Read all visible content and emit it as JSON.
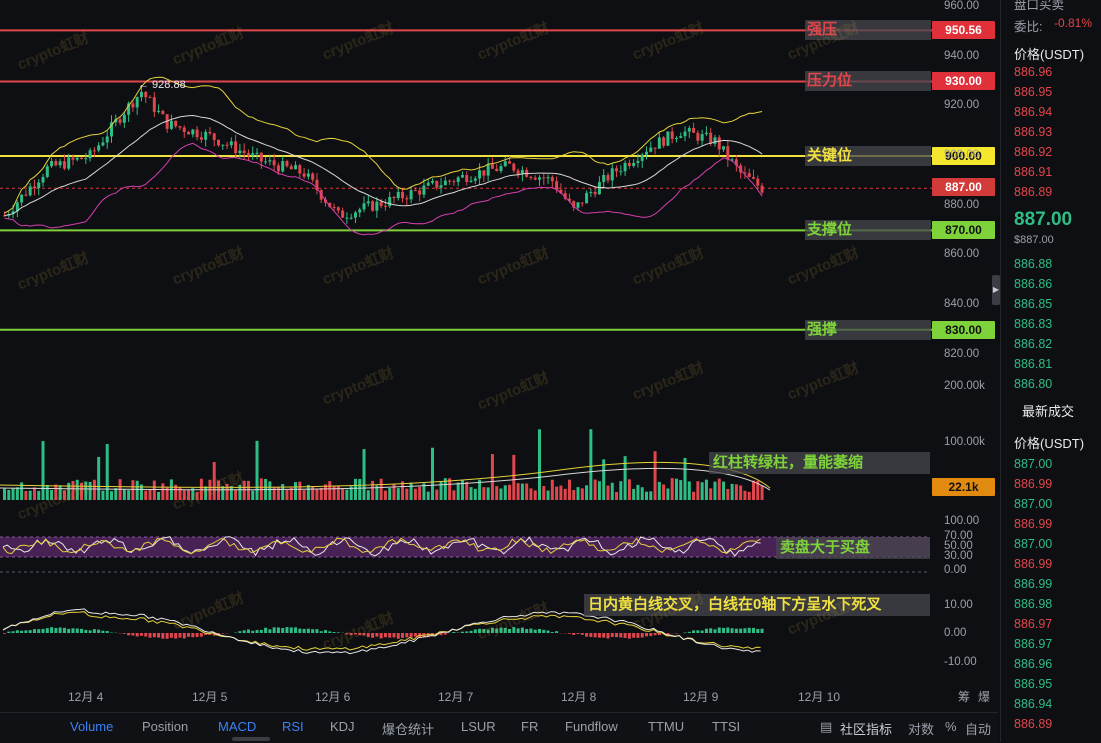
{
  "levels": [
    {
      "price": 950.56,
      "label": "强压",
      "tag": "950.56",
      "line_color": "#e0464c",
      "tag_bg": "#e0303a",
      "tag_color": "#ffffff",
      "label_color": "#e0464c"
    },
    {
      "price": 930.0,
      "label": "压力位",
      "tag": "930.00",
      "line_color": "#e0464c",
      "tag_bg": "#e0303a",
      "tag_color": "#ffffff",
      "label_color": "#e0464c"
    },
    {
      "price": 900.0,
      "label": "关键位",
      "tag": "900.00",
      "line_color": "#f0e040",
      "tag_bg": "#f5e62e",
      "tag_color": "#111111",
      "label_color": "#f0e040"
    },
    {
      "price": 870.0,
      "label": "支撑位",
      "tag": "870.00",
      "line_color": "#7ed23a",
      "tag_bg": "#7ed23a",
      "tag_color": "#111111",
      "label_color": "#7ed23a"
    },
    {
      "price": 830.0,
      "label": "强撑",
      "tag": "830.00",
      "line_color": "#7ed23a",
      "tag_bg": "#7ed23a",
      "tag_color": "#111111",
      "label_color": "#7ed23a"
    }
  ],
  "current_price": {
    "price": 887.0,
    "tag": "887.00",
    "tag_bg": "#d33a3a"
  },
  "high_marker": "928.88",
  "price_axis": [
    "960.00",
    "940.00",
    "920.00",
    "900.00",
    "880.00",
    "860.00",
    "840.00",
    "820.00"
  ],
  "volume_axis": [
    "200.00k",
    "100.00k"
  ],
  "volume_tag": "22.1k",
  "rsi_axis": [
    "100.00",
    "70.00",
    "50.00",
    "30.00",
    "0.00"
  ],
  "macd_axis": [
    "10.00",
    "0.00",
    "-10.00"
  ],
  "annotations": {
    "volume": "红柱转绿柱，量能萎缩",
    "rsi": "卖盘大于买盘",
    "macd": "日内黄白线交叉，白线在0轴下方呈水下死叉"
  },
  "dates": [
    "12月 4",
    "12月 5",
    "12月 6",
    "12月 7",
    "12月 8",
    "12月 9",
    "12月 10"
  ],
  "corner_labels": [
    "筹",
    "爆"
  ],
  "watermark": "crypto虹财",
  "bottom_tabs": [
    {
      "label": "Volume",
      "active": true
    },
    {
      "label": "Position",
      "active": false
    },
    {
      "label": "MACD",
      "active": true
    },
    {
      "label": "RSI",
      "active": true
    },
    {
      "label": "KDJ",
      "active": false
    },
    {
      "label": "爆仓统计",
      "active": false
    },
    {
      "label": "LSUR",
      "active": false
    },
    {
      "label": "FR",
      "active": false
    },
    {
      "label": "Fundflow",
      "active": false
    },
    {
      "label": "TTMU",
      "active": false
    },
    {
      "label": "TTSI",
      "active": false
    }
  ],
  "bottom_right": {
    "community": "社区指标",
    "log": "对数",
    "percent": "%",
    "auto": "自动"
  },
  "order_book": {
    "top_title": "盘口买卖",
    "ratio_label": "委比:",
    "ratio_value": "-0.81%",
    "price_header": "价格(USDT)",
    "asks": [
      "886.96",
      "886.95",
      "886.94",
      "886.93",
      "886.92",
      "886.91",
      "886.89"
    ],
    "last_price": "887.00",
    "last_price_sub": "$887.00",
    "bids": [
      "886.88",
      "886.86",
      "886.85",
      "886.83",
      "886.82",
      "886.81",
      "886.80"
    ],
    "trades_title": "最新成交",
    "trades_header": "价格(USDT)",
    "trades": [
      {
        "price": "887.00",
        "side": "buy"
      },
      {
        "price": "886.99",
        "side": "sell"
      },
      {
        "price": "887.00",
        "side": "buy"
      },
      {
        "price": "886.99",
        "side": "sell"
      },
      {
        "price": "887.00",
        "side": "buy"
      },
      {
        "price": "886.99",
        "side": "sell"
      },
      {
        "price": "886.99",
        "side": "buy"
      },
      {
        "price": "886.98",
        "side": "buy"
      },
      {
        "price": "886.97",
        "side": "sell"
      },
      {
        "price": "886.97",
        "side": "buy"
      },
      {
        "price": "886.96",
        "side": "buy"
      },
      {
        "price": "886.95",
        "side": "buy"
      },
      {
        "price": "886.94",
        "side": "buy"
      },
      {
        "price": "886.89",
        "side": "sell"
      }
    ]
  },
  "colors": {
    "up": "#2ebd85",
    "down": "#e0464c",
    "accent": "#3b82f6"
  }
}
